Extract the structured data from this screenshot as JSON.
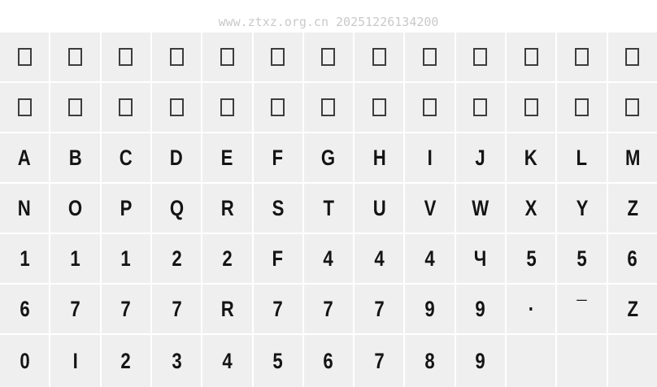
{
  "watermark": "www.ztxz.org.cn 20251226134200",
  "colors": {
    "page_bg": "#ffffff",
    "cell_bg": "#efefef",
    "glyph": "#141414",
    "tofu_border": "#3d3d3d",
    "watermark": "#c9c9c9"
  },
  "grid": {
    "columns": 13,
    "tofu_marker": "□",
    "rows": [
      [
        "□",
        "□",
        "□",
        "□",
        "□",
        "□",
        "□",
        "□",
        "□",
        "□",
        "□",
        "□",
        "□"
      ],
      [
        "□",
        "□",
        "□",
        "□",
        "□",
        "□",
        "□",
        "□",
        "□",
        "□",
        "□",
        "□",
        "□"
      ],
      [
        "A",
        "B",
        "C",
        "D",
        "E",
        "F",
        "G",
        "H",
        "I",
        "J",
        "K",
        "L",
        "M"
      ],
      [
        "N",
        "O",
        "P",
        "Q",
        "R",
        "S",
        "T",
        "U",
        "V",
        "W",
        "X",
        "Y",
        "Z"
      ],
      [
        "1",
        "1",
        "1",
        "2",
        "2",
        "F",
        "4",
        "4",
        "4",
        "Ч",
        "5",
        "5",
        "6"
      ],
      [
        "6",
        "7",
        "7",
        "7",
        "R",
        "7",
        "7",
        "7",
        "9",
        "9",
        "·",
        "¯",
        "Z"
      ],
      [
        "0",
        "I",
        "2",
        "3",
        "4",
        "5",
        "6",
        "7",
        "8",
        "9",
        "",
        "",
        ""
      ]
    ]
  }
}
